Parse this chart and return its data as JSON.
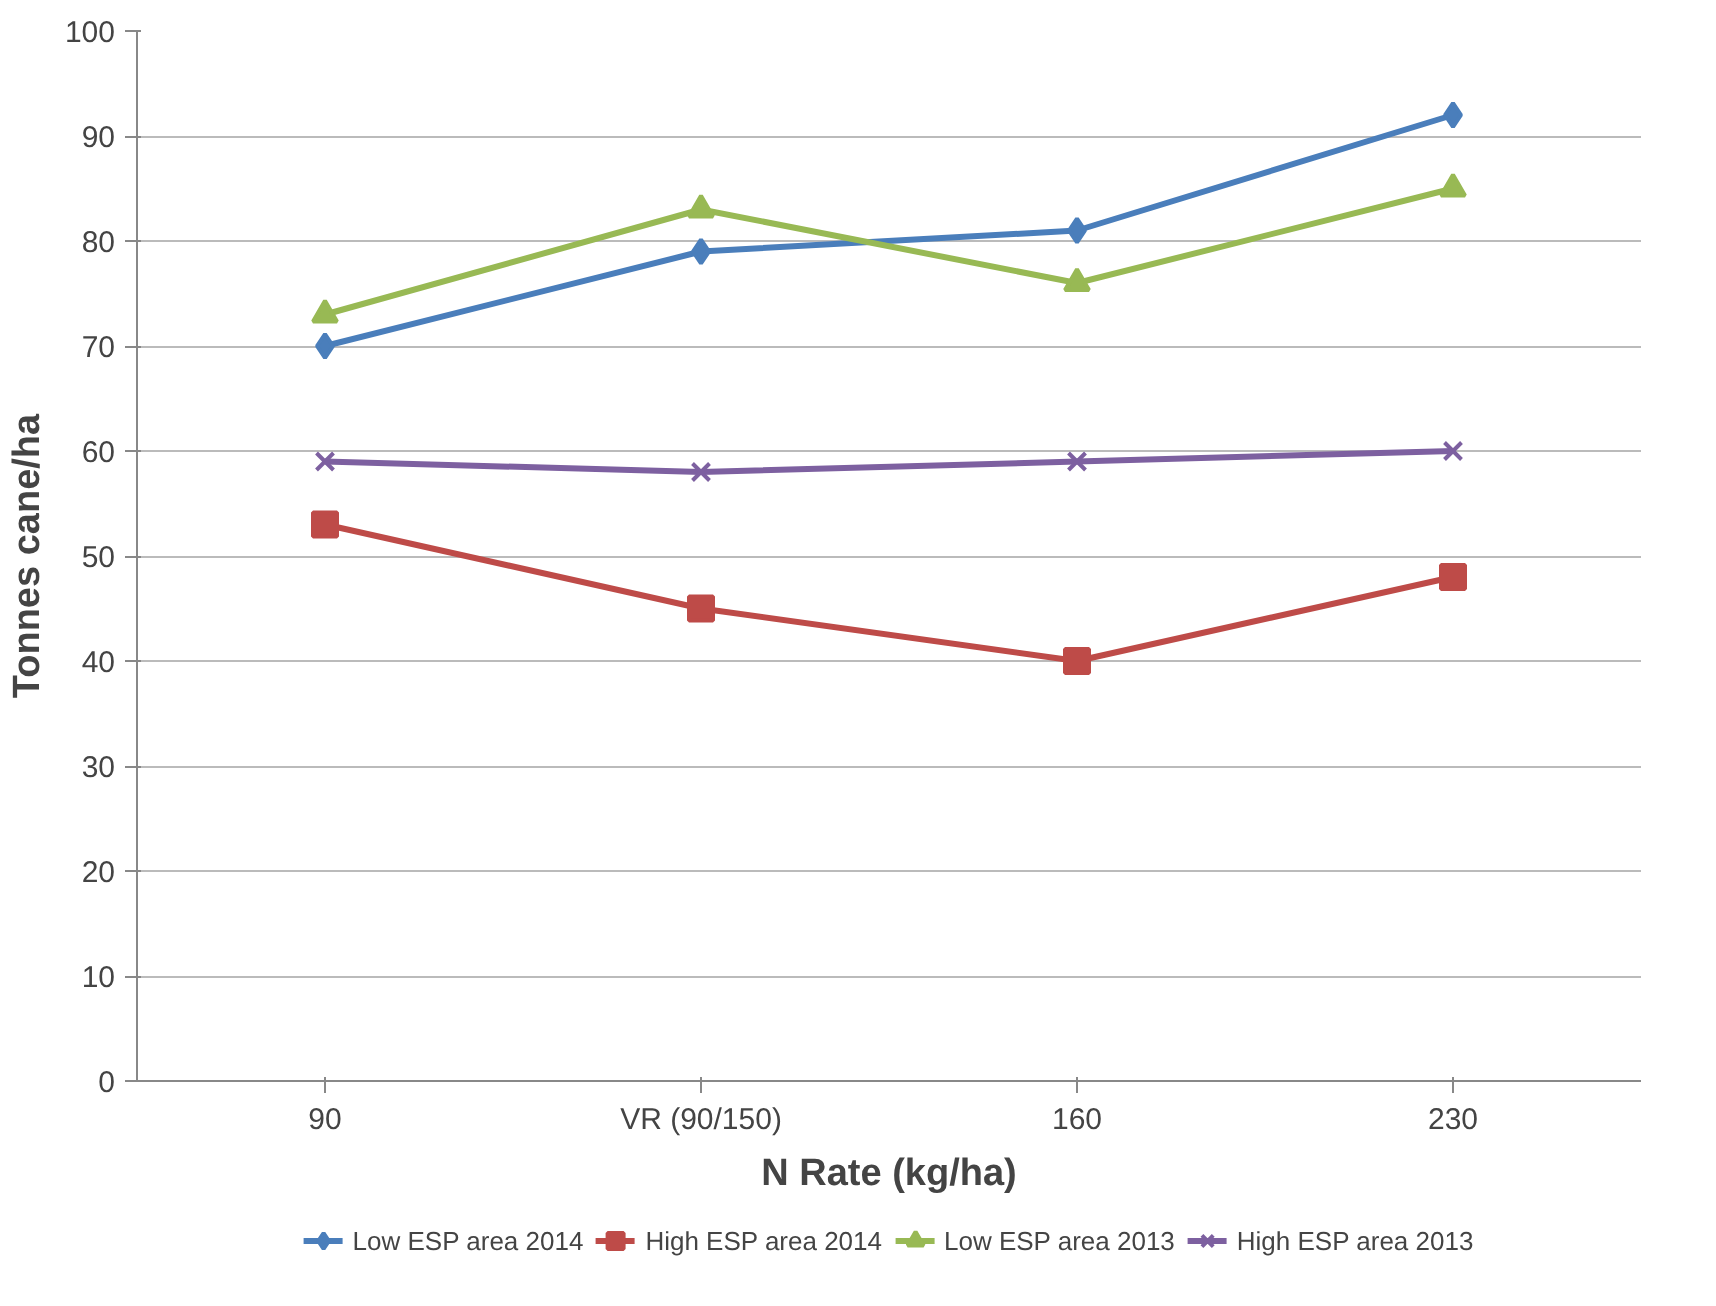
{
  "chart_data": {
    "type": "line",
    "xlabel": "N Rate (kg/ha)",
    "ylabel": "Tonnes cane/ha",
    "categories": [
      "90",
      "VR (90/150)",
      "160",
      "230"
    ],
    "series": [
      {
        "name": "Low ESP area 2014",
        "color": "#4a7ebb",
        "marker": "diamond",
        "values": [
          70,
          79,
          81,
          92
        ]
      },
      {
        "name": "High ESP area 2014",
        "color": "#be4b48",
        "marker": "square",
        "values": [
          53,
          45,
          40,
          48
        ]
      },
      {
        "name": "Low ESP area 2013",
        "color": "#98b954",
        "marker": "triangle",
        "values": [
          73,
          83,
          76,
          85
        ]
      },
      {
        "name": "High ESP area 2013",
        "color": "#7d60a0",
        "marker": "cross",
        "values": [
          59,
          58,
          59,
          60
        ]
      }
    ],
    "ylim": [
      0,
      100
    ],
    "yticks": [
      0,
      10,
      20,
      30,
      40,
      50,
      60,
      70,
      80,
      90,
      100
    ],
    "grid": "y",
    "legend": "bottom"
  }
}
